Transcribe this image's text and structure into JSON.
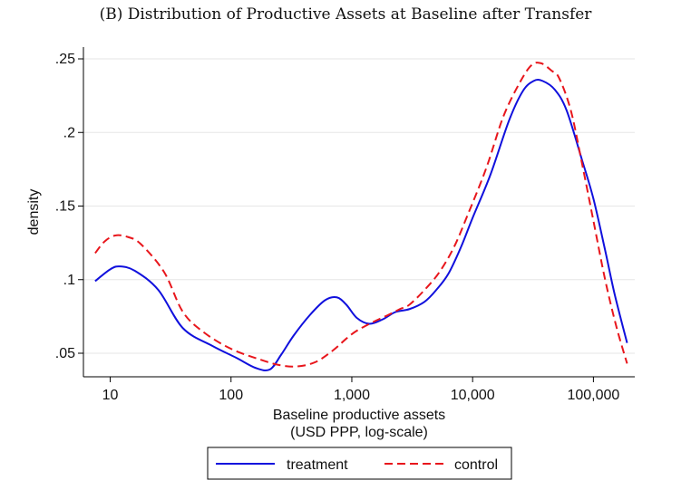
{
  "chart_data": {
    "type": "line",
    "title": "(B) Distribution of Productive Assets at Baseline after Transfer",
    "xlabel_line1": "Baseline productive assets",
    "xlabel_line2": "(USD PPP, log-scale)",
    "ylabel": "density",
    "x_scale": "log",
    "xlim": [
      6.0,
      220000
    ],
    "ylim": [
      0.034,
      0.258
    ],
    "x_ticks": [
      {
        "value": 10,
        "label": "10"
      },
      {
        "value": 100,
        "label": "100"
      },
      {
        "value": 1000,
        "label": "1,000"
      },
      {
        "value": 10000,
        "label": "10,000"
      },
      {
        "value": 100000,
        "label": "100,000"
      }
    ],
    "y_ticks": [
      {
        "value": 0.05,
        "label": ".05"
      },
      {
        "value": 0.1,
        "label": ".1"
      },
      {
        "value": 0.15,
        "label": ".15"
      },
      {
        "value": 0.2,
        "label": ".2"
      },
      {
        "value": 0.25,
        "label": ".25"
      }
    ],
    "grid": "horizontal",
    "legend_position": "bottom",
    "series": [
      {
        "name": "treatment",
        "color": "#1010dd",
        "dash": "solid",
        "points": [
          [
            7.5,
            0.099
          ],
          [
            10,
            0.107
          ],
          [
            12,
            0.109
          ],
          [
            16,
            0.106
          ],
          [
            25,
            0.093
          ],
          [
            40,
            0.067
          ],
          [
            70,
            0.055
          ],
          [
            110,
            0.047
          ],
          [
            160,
            0.04
          ],
          [
            210,
            0.039
          ],
          [
            260,
            0.049
          ],
          [
            330,
            0.062
          ],
          [
            450,
            0.076
          ],
          [
            600,
            0.086
          ],
          [
            750,
            0.088
          ],
          [
            900,
            0.083
          ],
          [
            1100,
            0.074
          ],
          [
            1400,
            0.07
          ],
          [
            1800,
            0.073
          ],
          [
            2300,
            0.078
          ],
          [
            3000,
            0.08
          ],
          [
            4000,
            0.085
          ],
          [
            5000,
            0.093
          ],
          [
            6300,
            0.104
          ],
          [
            8000,
            0.122
          ],
          [
            10000,
            0.142
          ],
          [
            14000,
            0.171
          ],
          [
            20000,
            0.208
          ],
          [
            26000,
            0.228
          ],
          [
            32000,
            0.235
          ],
          [
            38000,
            0.235
          ],
          [
            48000,
            0.229
          ],
          [
            60000,
            0.215
          ],
          [
            80000,
            0.182
          ],
          [
            100000,
            0.155
          ],
          [
            125000,
            0.12
          ],
          [
            150000,
            0.09
          ],
          [
            190000,
            0.057
          ]
        ]
      },
      {
        "name": "control",
        "color": "#e8161c",
        "dash": "dashed",
        "points": [
          [
            7.5,
            0.118
          ],
          [
            9,
            0.126
          ],
          [
            11,
            0.13
          ],
          [
            14,
            0.129
          ],
          [
            18,
            0.124
          ],
          [
            28,
            0.105
          ],
          [
            40,
            0.078
          ],
          [
            60,
            0.064
          ],
          [
            100,
            0.053
          ],
          [
            170,
            0.046
          ],
          [
            250,
            0.042
          ],
          [
            350,
            0.041
          ],
          [
            500,
            0.044
          ],
          [
            700,
            0.052
          ],
          [
            1000,
            0.063
          ],
          [
            1400,
            0.07
          ],
          [
            2000,
            0.076
          ],
          [
            2500,
            0.08
          ],
          [
            3000,
            0.083
          ],
          [
            4000,
            0.093
          ],
          [
            5300,
            0.105
          ],
          [
            7000,
            0.122
          ],
          [
            9000,
            0.143
          ],
          [
            13000,
            0.176
          ],
          [
            18000,
            0.211
          ],
          [
            25000,
            0.235
          ],
          [
            31000,
            0.246
          ],
          [
            37000,
            0.247
          ],
          [
            45000,
            0.242
          ],
          [
            52000,
            0.237
          ],
          [
            65000,
            0.215
          ],
          [
            80000,
            0.18
          ],
          [
            100000,
            0.14
          ],
          [
            125000,
            0.1
          ],
          [
            155000,
            0.068
          ],
          [
            190000,
            0.043
          ]
        ]
      }
    ]
  }
}
